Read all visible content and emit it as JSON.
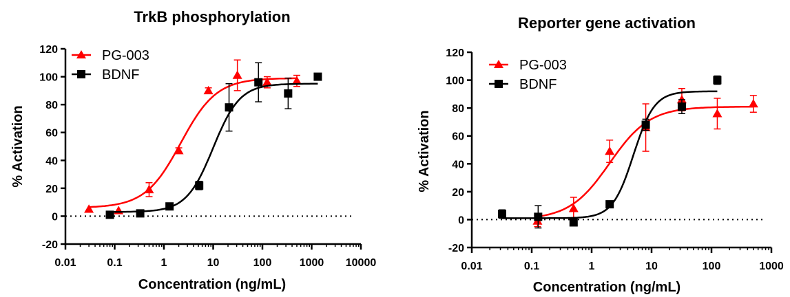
{
  "colors": {
    "pg003": "#ff0000",
    "bdnf": "#000000",
    "axis": "#000000"
  },
  "chart_data": [
    {
      "type": "scatter",
      "title": "TrkB phosphorylation",
      "xlabel": "Concentration (ng/mL)",
      "ylabel": "% Activation",
      "xscale": "log",
      "xlim": [
        0.01,
        10000
      ],
      "ylim": [
        -20,
        120
      ],
      "xticks": [
        "0.01",
        "0.1",
        "1",
        "10",
        "100",
        "1000",
        "10000"
      ],
      "yticks": [
        "-20",
        "0",
        "20",
        "40",
        "60",
        "80",
        "100",
        "120"
      ],
      "reference_line": {
        "y": 0,
        "style": "dotted"
      },
      "legend_position": "top-left",
      "series": [
        {
          "name": "PG-003",
          "marker": "triangle",
          "color": "#ff0000",
          "points": [
            {
              "x": 0.03,
              "y": 5,
              "err": 0
            },
            {
              "x": 0.12,
              "y": 4,
              "err": 0
            },
            {
              "x": 0.5,
              "y": 19,
              "err": 5
            },
            {
              "x": 2,
              "y": 47,
              "err": 2
            },
            {
              "x": 8,
              "y": 90,
              "err": 2
            },
            {
              "x": 31,
              "y": 101,
              "err": 11
            },
            {
              "x": 125,
              "y": 96,
              "err": 4
            },
            {
              "x": 500,
              "y": 97,
              "err": 4
            }
          ],
          "fit": {
            "bottom": 6,
            "top": 99,
            "ec50": 2.2,
            "hill": 1.2
          }
        },
        {
          "name": "BDNF",
          "marker": "square",
          "color": "#000000",
          "points": [
            {
              "x": 0.08,
              "y": 1,
              "err": 0
            },
            {
              "x": 0.33,
              "y": 2,
              "err": 0
            },
            {
              "x": 1.3,
              "y": 7,
              "err": 0
            },
            {
              "x": 5.2,
              "y": 22,
              "err": 3
            },
            {
              "x": 21,
              "y": 78,
              "err": 17
            },
            {
              "x": 83,
              "y": 96,
              "err": 14
            },
            {
              "x": 333,
              "y": 88,
              "err": 11
            },
            {
              "x": 1333,
              "y": 100,
              "err": 0
            }
          ],
          "fit": {
            "bottom": 3,
            "top": 95,
            "ec50": 10,
            "hill": 1.6
          }
        }
      ]
    },
    {
      "type": "scatter",
      "title": "Reporter gene activation",
      "xlabel": "Concentration (ng/mL)",
      "ylabel": "% Activation",
      "xscale": "log",
      "xlim": [
        0.01,
        1000
      ],
      "ylim": [
        -20,
        120
      ],
      "xticks": [
        "0.01",
        "0.1",
        "1",
        "10",
        "100",
        "1000"
      ],
      "yticks": [
        "-20",
        "0",
        "20",
        "40",
        "60",
        "80",
        "100",
        "120"
      ],
      "reference_line": {
        "y": 0,
        "style": "dotted"
      },
      "legend_position": "top-left",
      "series": [
        {
          "name": "PG-003",
          "marker": "triangle",
          "color": "#ff0000",
          "points": [
            {
              "x": 0.125,
              "y": -1,
              "err": 4
            },
            {
              "x": 0.5,
              "y": 8,
              "err": 8
            },
            {
              "x": 2,
              "y": 49,
              "err": 8
            },
            {
              "x": 8,
              "y": 66,
              "err": 17
            },
            {
              "x": 32,
              "y": 86,
              "err": 8
            },
            {
              "x": 125,
              "y": 76,
              "err": 11
            },
            {
              "x": 500,
              "y": 83,
              "err": 6
            }
          ],
          "fit": {
            "bottom": 0,
            "top": 81,
            "ec50": 2.0,
            "hill": 1.3
          }
        },
        {
          "name": "BDNF",
          "marker": "square",
          "color": "#000000",
          "points": [
            {
              "x": 0.032,
              "y": 4,
              "err": 3
            },
            {
              "x": 0.128,
              "y": 2,
              "err": 8
            },
            {
              "x": 0.5,
              "y": -2,
              "err": 0
            },
            {
              "x": 2,
              "y": 11,
              "err": 0
            },
            {
              "x": 8,
              "y": 68,
              "err": 4
            },
            {
              "x": 32,
              "y": 81,
              "err": 5
            },
            {
              "x": 125,
              "y": 100,
              "err": 3
            }
          ],
          "fit": {
            "bottom": 1,
            "top": 92,
            "ec50": 5,
            "hill": 2.5
          }
        }
      ]
    }
  ]
}
